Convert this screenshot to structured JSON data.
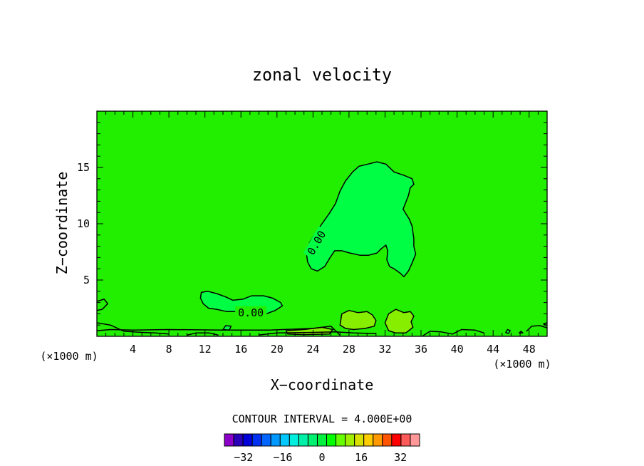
{
  "chart_data": {
    "type": "contour",
    "title": "zonal velocity",
    "xlabel": "X−coordinate",
    "ylabel": "Z−coordinate",
    "x_unit": "(×1000 m)",
    "xlim": [
      0,
      50
    ],
    "ylim": [
      0,
      20
    ],
    "x_ticks": [
      4,
      8,
      12,
      16,
      20,
      24,
      28,
      32,
      36,
      40,
      44,
      48
    ],
    "y_ticks": [
      5,
      10,
      15
    ],
    "contour_interval_text": "CONTOUR INTERVAL = 4.000E+00",
    "contour_label_text": "0.00",
    "colorbar": {
      "levels": [
        -36,
        -32,
        -28,
        -24,
        -20,
        -16,
        -12,
        -8,
        -4,
        0,
        4,
        8,
        12,
        16,
        20,
        24,
        28,
        32,
        36
      ],
      "tick_values": [
        -32,
        -16,
        0,
        16,
        32
      ],
      "tick_labels": [
        "−32",
        "−16",
        "0",
        "16",
        "32"
      ],
      "colors": [
        "#8a00c8",
        "#2a00b8",
        "#0000d8",
        "#0030f0",
        "#0066ff",
        "#0099ff",
        "#00c8ff",
        "#00eedd",
        "#00f0a8",
        "#00f070",
        "#00f040",
        "#00ff00",
        "#66ff00",
        "#a0ee00",
        "#d8e000",
        "#ffcc00",
        "#ff9900",
        "#ff5500",
        "#ff0000",
        "#ff5a5a",
        "#ff9999"
      ]
    },
    "background_fill_color": "#22ee00",
    "negative_fill_color": "#00ff44",
    "positive_fill_color": "#88ee00",
    "series": [
      {
        "level": 0,
        "labeled": true,
        "kind": "closed",
        "fill": "neg",
        "points": [
          [
            23.3,
            7.2
          ],
          [
            23.6,
            8.3
          ],
          [
            24.3,
            9.2
          ],
          [
            25.0,
            10.0
          ],
          [
            25.8,
            10.9
          ],
          [
            26.5,
            11.8
          ],
          [
            27.0,
            12.9
          ],
          [
            27.6,
            13.8
          ],
          [
            28.4,
            14.6
          ],
          [
            29.1,
            15.1
          ],
          [
            30.1,
            15.3
          ],
          [
            31.1,
            15.5
          ],
          [
            32.1,
            15.3
          ],
          [
            33.0,
            14.6
          ],
          [
            34.1,
            14.3
          ],
          [
            35.0,
            14.0
          ],
          [
            35.2,
            13.5
          ],
          [
            34.8,
            13.2
          ],
          [
            34.6,
            12.5
          ],
          [
            34.3,
            11.9
          ],
          [
            34.0,
            11.3
          ],
          [
            34.3,
            10.9
          ],
          [
            34.7,
            10.4
          ],
          [
            35.0,
            9.8
          ],
          [
            35.1,
            9.2
          ],
          [
            35.2,
            8.7
          ],
          [
            35.2,
            8.0
          ],
          [
            35.4,
            7.3
          ],
          [
            35.0,
            6.5
          ],
          [
            34.6,
            5.8
          ],
          [
            34.1,
            5.3
          ],
          [
            33.7,
            5.6
          ],
          [
            33.0,
            6.0
          ],
          [
            32.5,
            6.2
          ],
          [
            32.2,
            6.8
          ],
          [
            32.3,
            7.6
          ],
          [
            32.1,
            8.1
          ],
          [
            31.6,
            7.8
          ],
          [
            31.1,
            7.4
          ],
          [
            30.2,
            7.2
          ],
          [
            29.2,
            7.2
          ],
          [
            28.1,
            7.4
          ],
          [
            27.2,
            7.6
          ],
          [
            26.4,
            7.6
          ],
          [
            25.9,
            7.0
          ],
          [
            25.3,
            6.2
          ],
          [
            24.5,
            5.8
          ],
          [
            23.8,
            6.0
          ],
          [
            23.4,
            6.6
          ]
        ]
      },
      {
        "level": 0,
        "labeled": true,
        "kind": "closed",
        "fill": "neg",
        "points": [
          [
            11.5,
            3.4
          ],
          [
            11.6,
            3.9
          ],
          [
            12.3,
            4.0
          ],
          [
            13.3,
            3.8
          ],
          [
            14.3,
            3.5
          ],
          [
            15.1,
            3.2
          ],
          [
            16.2,
            3.3
          ],
          [
            17.2,
            3.6
          ],
          [
            18.5,
            3.6
          ],
          [
            19.5,
            3.4
          ],
          [
            20.4,
            3.0
          ],
          [
            20.6,
            2.7
          ],
          [
            19.8,
            2.3
          ],
          [
            18.8,
            2.0
          ],
          [
            17.7,
            1.9
          ],
          [
            16.8,
            2.1
          ],
          [
            15.8,
            2.2
          ],
          [
            14.4,
            2.2
          ],
          [
            13.3,
            2.4
          ],
          [
            12.4,
            2.5
          ],
          [
            11.8,
            2.9
          ]
        ]
      },
      {
        "level": 0,
        "labeled": false,
        "kind": "closed",
        "fill": "pos",
        "points": [
          [
            27.0,
            1.0
          ],
          [
            27.2,
            2.0
          ],
          [
            28.0,
            2.3
          ],
          [
            29.0,
            2.1
          ],
          [
            30.0,
            2.2
          ],
          [
            30.6,
            1.9
          ],
          [
            31.0,
            1.4
          ],
          [
            30.8,
            0.9
          ],
          [
            29.8,
            0.7
          ],
          [
            28.5,
            0.6
          ],
          [
            27.6,
            0.7
          ]
        ]
      },
      {
        "level": 0,
        "labeled": false,
        "kind": "closed",
        "fill": "pos",
        "points": [
          [
            32.0,
            1.2
          ],
          [
            32.4,
            2.0
          ],
          [
            33.2,
            2.4
          ],
          [
            34.1,
            2.1
          ],
          [
            34.8,
            2.2
          ],
          [
            35.2,
            1.8
          ],
          [
            34.9,
            1.3
          ],
          [
            35.1,
            0.8
          ],
          [
            34.3,
            0.3
          ],
          [
            33.2,
            0.3
          ],
          [
            32.4,
            0.5
          ]
        ]
      },
      {
        "level": 0,
        "labeled": false,
        "kind": "closed",
        "fill": "pos",
        "points": [
          [
            21.0,
            0.5
          ],
          [
            23.0,
            0.6
          ],
          [
            25.0,
            0.8
          ],
          [
            26.2,
            0.6
          ],
          [
            25.8,
            0.2
          ],
          [
            23.0,
            0.15
          ],
          [
            21.2,
            0.2
          ]
        ]
      },
      {
        "level": 0,
        "labeled": false,
        "kind": "closed",
        "fill": "neg",
        "points": [
          [
            14.0,
            0.6
          ],
          [
            14.3,
            0.95
          ],
          [
            14.9,
            0.9
          ],
          [
            14.7,
            0.55
          ]
        ]
      },
      {
        "level": 0,
        "labeled": false,
        "kind": "closed",
        "fill": "neg",
        "points": [
          [
            45.4,
            0.35
          ],
          [
            45.6,
            0.6
          ],
          [
            45.9,
            0.5
          ],
          [
            45.7,
            0.25
          ]
        ]
      },
      {
        "level": 0,
        "labeled": false,
        "kind": "closed",
        "fill": "neg",
        "points": [
          [
            46.9,
            0.3
          ],
          [
            47.1,
            0.45
          ],
          [
            47.3,
            0.3
          ]
        ]
      },
      {
        "level": 0,
        "labeled": false,
        "kind": "open",
        "points": [
          [
            0.0,
            1.2
          ],
          [
            1.5,
            1.0
          ],
          [
            3.0,
            0.45
          ],
          [
            5.0,
            0.35
          ],
          [
            6.5,
            0.3
          ],
          [
            8.0,
            0.2
          ]
        ]
      },
      {
        "level": 0,
        "labeled": false,
        "kind": "open",
        "points": [
          [
            10.0,
            0.1
          ],
          [
            11.0,
            0.3
          ],
          [
            12.5,
            0.3
          ],
          [
            13.5,
            0.1
          ]
        ]
      },
      {
        "level": 0,
        "labeled": false,
        "kind": "open",
        "points": [
          [
            18.0,
            0.12
          ],
          [
            20.0,
            0.3
          ],
          [
            24.0,
            0.35
          ],
          [
            26.5,
            0.4
          ],
          [
            28.5,
            0.3
          ],
          [
            31.0,
            0.25
          ]
        ]
      },
      {
        "level": 0,
        "labeled": false,
        "kind": "open",
        "points": [
          [
            36.2,
            0.05
          ],
          [
            37.0,
            0.45
          ],
          [
            38.2,
            0.4
          ],
          [
            39.5,
            0.2
          ],
          [
            40.5,
            0.6
          ],
          [
            42.0,
            0.55
          ],
          [
            43.0,
            0.3
          ]
        ]
      },
      {
        "level": 0,
        "labeled": false,
        "kind": "open",
        "points": [
          [
            47.7,
            0.45
          ],
          [
            48.3,
            0.9
          ],
          [
            49.2,
            0.95
          ],
          [
            50.0,
            0.75
          ]
        ]
      },
      {
        "level": 0,
        "labeled": false,
        "kind": "open",
        "points": [
          [
            0.0,
            3.1
          ],
          [
            0.8,
            3.3
          ],
          [
            1.2,
            2.9
          ],
          [
            0.6,
            2.4
          ],
          [
            0.0,
            2.3
          ]
        ]
      },
      {
        "level": 0,
        "labeled": false,
        "kind": "open",
        "points": [
          [
            50.0,
            1.2
          ],
          [
            49.6,
            1.1
          ],
          [
            50.0,
            0.95
          ]
        ]
      },
      {
        "level": 0,
        "labeled": false,
        "kind": "open",
        "points": [
          [
            0.0,
            0.5
          ],
          [
            1.5,
            0.6
          ],
          [
            4.0,
            0.55
          ],
          [
            8.0,
            0.6
          ],
          [
            14.0,
            0.55
          ],
          [
            19.0,
            0.55
          ],
          [
            24.0,
            0.7
          ],
          [
            26.0,
            0.9
          ],
          [
            26.5,
            0.5
          ],
          [
            27.0,
            0.1
          ]
        ]
      }
    ],
    "contour_labels": [
      {
        "x": 24.4,
        "y": 8.3,
        "rotation": -60
      },
      {
        "x": 17.1,
        "y": 2.1,
        "rotation": 0
      }
    ]
  }
}
